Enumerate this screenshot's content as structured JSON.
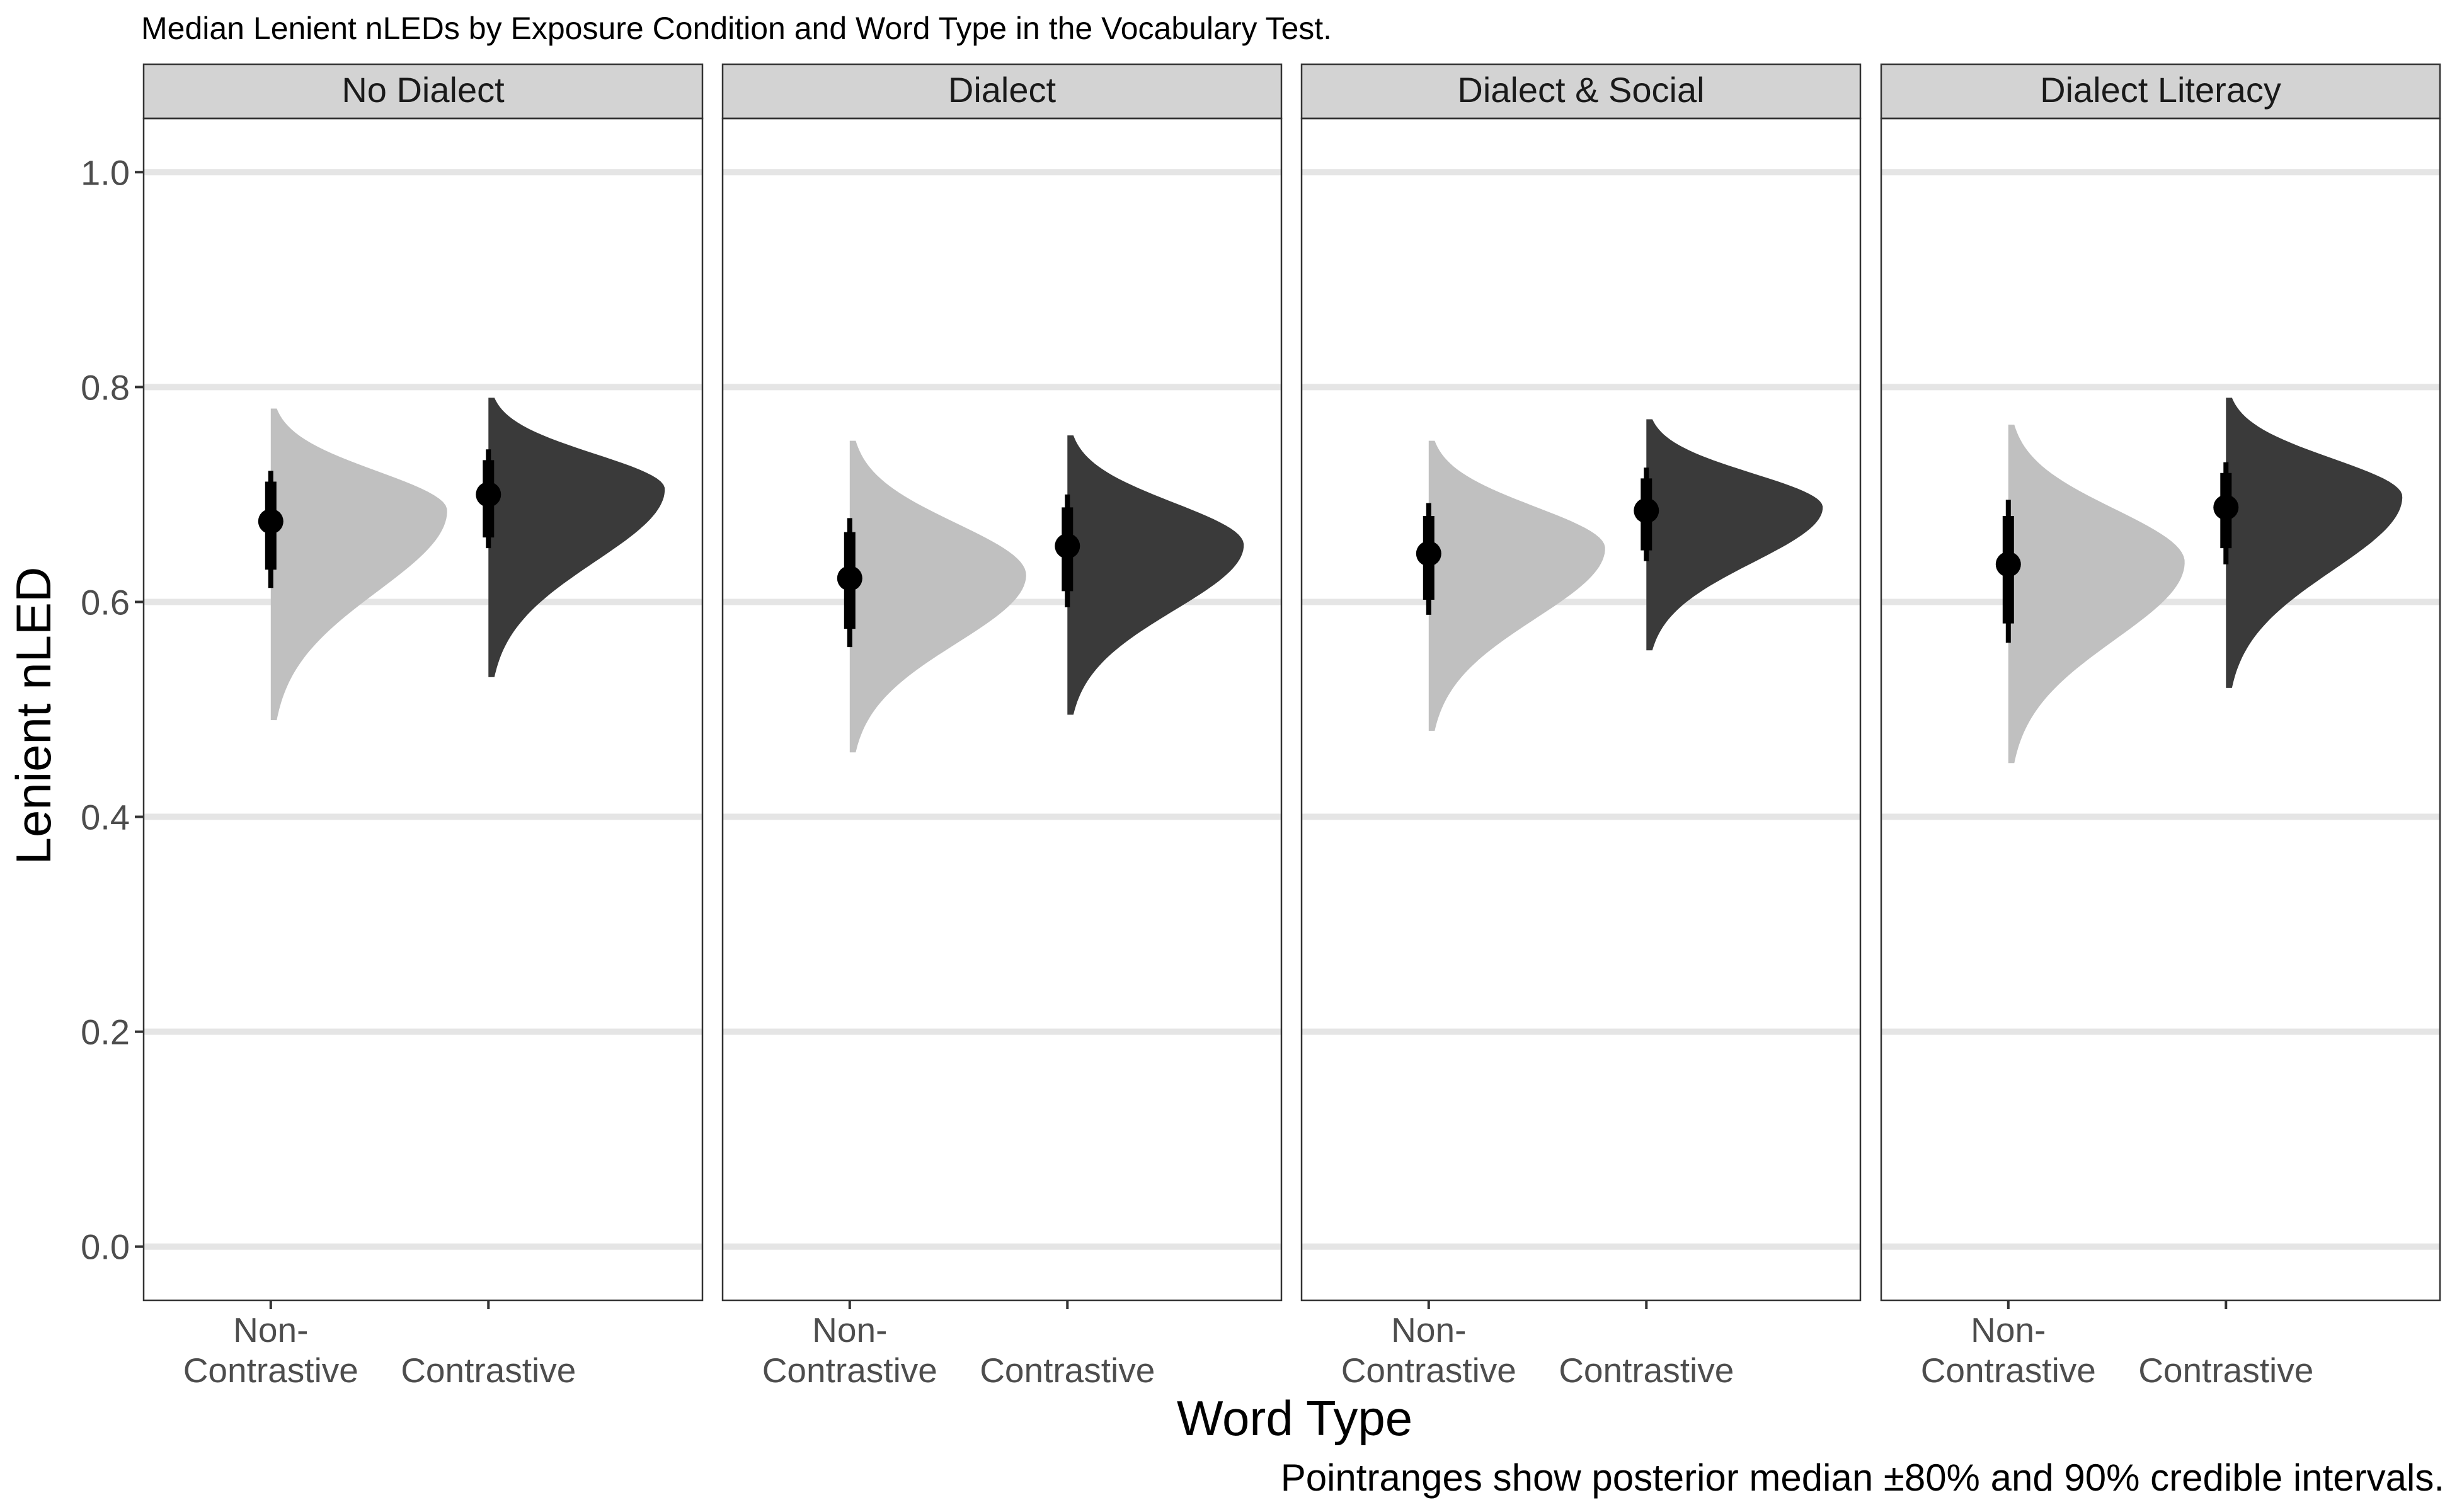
{
  "chart_data": {
    "type": "halfeye",
    "title": "Median Lenient nLEDs by Exposure Condition and Word Type in the Vocabulary Test.",
    "xlabel": "Word Type",
    "ylabel": "Lenient nLED",
    "caption": "Pointranges show posterior median ±80% and 90% credible intervals.",
    "ylim": [
      -0.05,
      1.05
    ],
    "yticks": [
      0.0,
      0.2,
      0.4,
      0.6,
      0.8,
      1.0
    ],
    "ytick_labels": [
      "0.0",
      "0.2",
      "0.4",
      "0.6",
      "0.8",
      "1.0"
    ],
    "grid": true,
    "categories": [
      "Non-Contrastive",
      "Contrastive"
    ],
    "category_label_lines": [
      [
        "Non-",
        "Contrastive"
      ],
      [
        "Contrastive"
      ]
    ],
    "category_colors": [
      "#c0c0c0",
      "#3a3a3a"
    ],
    "point_color": "#000000",
    "panels": [
      {
        "name": "No Dialect",
        "points": [
          {
            "category": "Non-Contrastive",
            "median": 0.675,
            "ci80": [
              0.63,
              0.712
            ],
            "ci90": [
              0.613,
              0.722
            ],
            "density_range": [
              0.49,
              0.78
            ],
            "peak": 0.685
          },
          {
            "category": "Contrastive",
            "median": 0.7,
            "ci80": [
              0.66,
              0.732
            ],
            "ci90": [
              0.65,
              0.742
            ],
            "density_range": [
              0.53,
              0.79
            ],
            "peak": 0.705
          }
        ]
      },
      {
        "name": "Dialect",
        "points": [
          {
            "category": "Non-Contrastive",
            "median": 0.622,
            "ci80": [
              0.575,
              0.665
            ],
            "ci90": [
              0.558,
              0.678
            ],
            "density_range": [
              0.46,
              0.75
            ],
            "peak": 0.625
          },
          {
            "category": "Contrastive",
            "median": 0.652,
            "ci80": [
              0.61,
              0.688
            ],
            "ci90": [
              0.595,
              0.7
            ],
            "density_range": [
              0.495,
              0.755
            ],
            "peak": 0.653
          }
        ]
      },
      {
        "name": "Dialect & Social",
        "points": [
          {
            "category": "Non-Contrastive",
            "median": 0.645,
            "ci80": [
              0.602,
              0.68
            ],
            "ci90": [
              0.588,
              0.692
            ],
            "density_range": [
              0.48,
              0.75
            ],
            "peak": 0.65
          },
          {
            "category": "Contrastive",
            "median": 0.685,
            "ci80": [
              0.648,
              0.715
            ],
            "ci90": [
              0.638,
              0.725
            ],
            "density_range": [
              0.555,
              0.77
            ],
            "peak": 0.688
          }
        ]
      },
      {
        "name": "Dialect Literacy",
        "points": [
          {
            "category": "Non-Contrastive",
            "median": 0.635,
            "ci80": [
              0.58,
              0.68
            ],
            "ci90": [
              0.562,
              0.695
            ],
            "density_range": [
              0.45,
              0.765
            ],
            "peak": 0.637
          },
          {
            "category": "Contrastive",
            "median": 0.688,
            "ci80": [
              0.65,
              0.72
            ],
            "ci90": [
              0.635,
              0.73
            ],
            "density_range": [
              0.52,
              0.79
            ],
            "peak": 0.698
          }
        ]
      }
    ]
  }
}
